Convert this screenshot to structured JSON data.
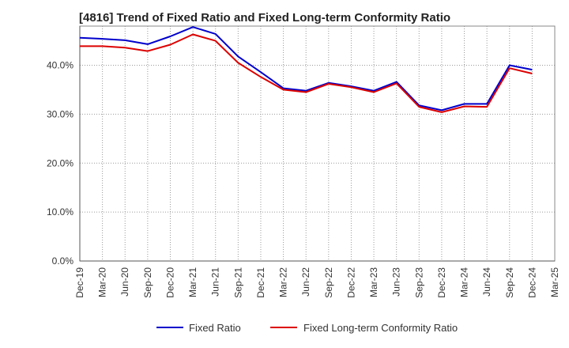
{
  "chart_data": {
    "type": "line",
    "title": "[4816]  Trend of Fixed Ratio and Fixed Long-term Conformity Ratio",
    "xlabel": "",
    "ylabel": "",
    "x": [
      "Dec-19",
      "Mar-20",
      "Jun-20",
      "Sep-20",
      "Dec-20",
      "Mar-21",
      "Jun-21",
      "Sep-21",
      "Dec-21",
      "Mar-22",
      "Jun-22",
      "Sep-22",
      "Dec-22",
      "Mar-23",
      "Jun-23",
      "Sep-23",
      "Dec-23",
      "Mar-24",
      "Jun-24",
      "Sep-24",
      "Dec-24"
    ],
    "x_ticks": [
      "Dec-19",
      "Mar-20",
      "Jun-20",
      "Sep-20",
      "Dec-20",
      "Mar-21",
      "Jun-21",
      "Sep-21",
      "Dec-21",
      "Mar-22",
      "Jun-22",
      "Sep-22",
      "Dec-22",
      "Mar-23",
      "Jun-23",
      "Sep-23",
      "Dec-23",
      "Mar-24",
      "Jun-24",
      "Sep-24",
      "Dec-24",
      "Mar-25"
    ],
    "y_ticks": [
      "0.0%",
      "10.0%",
      "20.0%",
      "30.0%",
      "40.0%"
    ],
    "y_tick_values": [
      0,
      10,
      20,
      30,
      40
    ],
    "ylim": [
      0,
      48
    ],
    "grid": true,
    "legend_position": "bottom",
    "series": [
      {
        "name": "Fixed Ratio",
        "color": "#0000cc",
        "values": [
          45.6,
          45.4,
          45.1,
          44.3,
          45.9,
          47.8,
          46.4,
          41.8,
          38.6,
          35.3,
          34.8,
          36.4,
          35.7,
          34.8,
          36.6,
          31.8,
          30.8,
          32.1,
          32.1,
          40.0,
          39.1
        ]
      },
      {
        "name": "Fixed Long-term Conformity Ratio",
        "color": "#dd0000",
        "values": [
          43.9,
          43.9,
          43.6,
          42.9,
          44.2,
          46.3,
          45.0,
          40.5,
          37.6,
          35.0,
          34.5,
          36.2,
          35.5,
          34.5,
          36.3,
          31.5,
          30.4,
          31.6,
          31.5,
          39.4,
          38.3
        ]
      }
    ]
  }
}
